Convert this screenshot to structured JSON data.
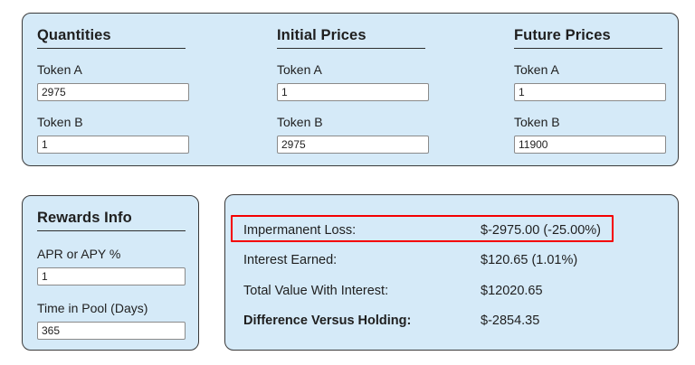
{
  "token_panel": {
    "columns": [
      {
        "title": "Quantities",
        "fields": [
          {
            "label": "Token A",
            "value": "2975"
          },
          {
            "label": "Token B",
            "value": "1"
          }
        ]
      },
      {
        "title": "Initial Prices",
        "fields": [
          {
            "label": "Token A",
            "value": "1"
          },
          {
            "label": "Token B",
            "value": "2975"
          }
        ]
      },
      {
        "title": "Future Prices",
        "fields": [
          {
            "label": "Token A",
            "value": "1"
          },
          {
            "label": "Token B",
            "value": "11900"
          }
        ]
      }
    ]
  },
  "rewards_panel": {
    "title": "Rewards Info",
    "fields": [
      {
        "label": "APR or APY %",
        "value": "1"
      },
      {
        "label": "Time in Pool (Days)",
        "value": "365"
      }
    ]
  },
  "results_panel": {
    "rows": [
      {
        "label": "Impermanent Loss:",
        "value": "$-2975.00 (-25.00%)",
        "highlighted": "true"
      },
      {
        "label": "Interest Earned:",
        "value": "$120.65 (1.01%)"
      },
      {
        "label": "Total Value With Interest:",
        "value": "$12020.65"
      },
      {
        "label": "Difference Versus Holding:",
        "value": "$-2854.35"
      }
    ]
  },
  "colors": {
    "panel_bg": "#d5eaf8",
    "panel_border": "#3a3a3a",
    "input_border": "#8a8a8a",
    "text": "#1f1f1f",
    "highlight_red": "#f40000"
  }
}
